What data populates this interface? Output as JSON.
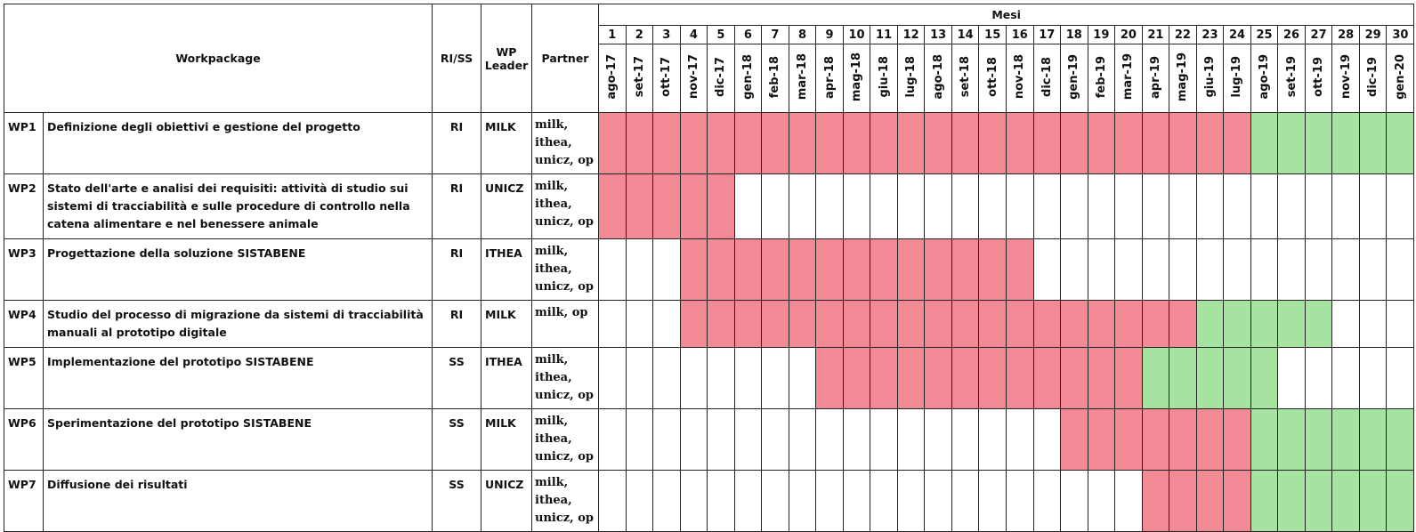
{
  "header": {
    "workpackage": "Workpackage",
    "type": "RI/SS",
    "leader": "WP Leader",
    "partner": "Partner",
    "months_title": "Mesi"
  },
  "month_numbers": [
    1,
    2,
    3,
    4,
    5,
    6,
    7,
    8,
    9,
    10,
    11,
    12,
    13,
    14,
    15,
    16,
    17,
    18,
    19,
    20,
    21,
    22,
    23,
    24,
    25,
    26,
    27,
    28,
    29,
    30
  ],
  "months": [
    "ago-17",
    "set-17",
    "ott-17",
    "nov-17",
    "dic-17",
    "gen-18",
    "feb-18",
    "mar-18",
    "apr-18",
    "mag-18",
    "giu-18",
    "lug-18",
    "ago-18",
    "set-18",
    "ott-18",
    "nov-18",
    "dic-18",
    "gen-19",
    "feb-19",
    "mar-19",
    "apr-19",
    "mag-19",
    "giu-19",
    "lug-19",
    "ago-19",
    "set-19",
    "ott-19",
    "nov-19",
    "dic-19",
    "gen-20"
  ],
  "rows": [
    {
      "id": "WP1",
      "title": "Definizione degli obiettivi e gestione del progetto",
      "type": "RI",
      "leader": "MILK",
      "partner": [
        "milk,",
        "ithea,",
        "unicz, op"
      ],
      "phases": [
        {
          "from": 1,
          "to": 24,
          "color": "#f28b96"
        },
        {
          "from": 25,
          "to": 30,
          "color": "#a6e3a0"
        }
      ]
    },
    {
      "id": "WP2",
      "title": "Stato dell'arte e analisi dei requisiti: attività di studio sui sistemi di tracciabilità e sulle procedure di controllo nella catena alimentare e nel benessere animale",
      "type": "RI",
      "leader": "UNICZ",
      "partner": [
        "milk,",
        "ithea,",
        "unicz, op"
      ],
      "phases": [
        {
          "from": 1,
          "to": 5,
          "color": "#f28b96"
        }
      ]
    },
    {
      "id": "WP3",
      "title": "Progettazione della soluzione SISTABENE",
      "type": "RI",
      "leader": "ITHEA",
      "partner": [
        "milk,",
        "ithea,",
        "unicz, op"
      ],
      "phases": [
        {
          "from": 4,
          "to": 16,
          "color": "#f28b96"
        }
      ]
    },
    {
      "id": "WP4",
      "title": "Studio del processo di migrazione da sistemi di tracciabilità manuali al prototipo digitale",
      "type": "RI",
      "leader": "MILK",
      "partner": [
        "milk, op"
      ],
      "phases": [
        {
          "from": 4,
          "to": 22,
          "color": "#f28b96"
        },
        {
          "from": 23,
          "to": 27,
          "color": "#a6e3a0"
        }
      ]
    },
    {
      "id": "WP5",
      "title": "Implementazione del prototipo SISTABENE",
      "type": "SS",
      "leader": "ITHEA",
      "partner": [
        "milk,",
        "ithea,",
        "unicz, op"
      ],
      "phases": [
        {
          "from": 9,
          "to": 20,
          "color": "#f28b96"
        },
        {
          "from": 21,
          "to": 25,
          "color": "#a6e3a0"
        }
      ]
    },
    {
      "id": "WP6",
      "title": "Sperimentazione del prototipo SISTABENE",
      "type": "SS",
      "leader": "MILK",
      "partner": [
        "milk,",
        "ithea,",
        "unicz, op"
      ],
      "phases": [
        {
          "from": 18,
          "to": 24,
          "color": "#f28b96"
        },
        {
          "from": 25,
          "to": 30,
          "color": "#a6e3a0"
        }
      ]
    },
    {
      "id": "WP7",
      "title": "Diffusione dei risultati",
      "type": "SS",
      "leader": "UNICZ",
      "partner": [
        "milk,",
        "ithea,",
        "unicz, op"
      ],
      "phases": [
        {
          "from": 21,
          "to": 24,
          "color": "#f28b96"
        },
        {
          "from": 25,
          "to": 30,
          "color": "#a6e3a0"
        }
      ]
    }
  ]
}
